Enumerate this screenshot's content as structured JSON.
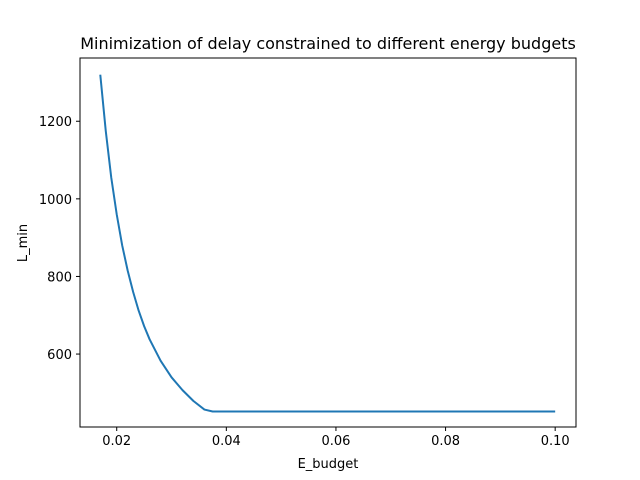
{
  "chart_data": {
    "type": "line",
    "title": "Minimization of delay constrained to different energy budgets",
    "xlabel": "E_budget",
    "ylabel": "L_min",
    "xlim": [
      0.0133,
      0.1038
    ],
    "ylim": [
      412,
      1363
    ],
    "xticks": [
      0.02,
      0.04,
      0.06,
      0.08,
      0.1
    ],
    "xtick_labels": [
      "0.02",
      "0.04",
      "0.06",
      "0.08",
      "0.10"
    ],
    "yticks": [
      600,
      800,
      1000,
      1200
    ],
    "ytick_labels": [
      "600",
      "800",
      "1000",
      "1200"
    ],
    "grid": false,
    "series": [
      {
        "color": "#1f77b4",
        "x": [
          0.017,
          0.018,
          0.019,
          0.02,
          0.021,
          0.022,
          0.023,
          0.024,
          0.025,
          0.026,
          0.028,
          0.03,
          0.032,
          0.034,
          0.036,
          0.0375,
          0.04,
          0.05,
          0.06,
          0.07,
          0.08,
          0.09,
          0.1
        ],
        "y": [
          1320,
          1175,
          1055,
          960,
          880,
          815,
          760,
          712,
          672,
          638,
          583,
          540,
          507,
          479,
          457,
          452,
          452,
          452,
          452,
          452,
          452,
          452,
          452
        ]
      }
    ]
  }
}
